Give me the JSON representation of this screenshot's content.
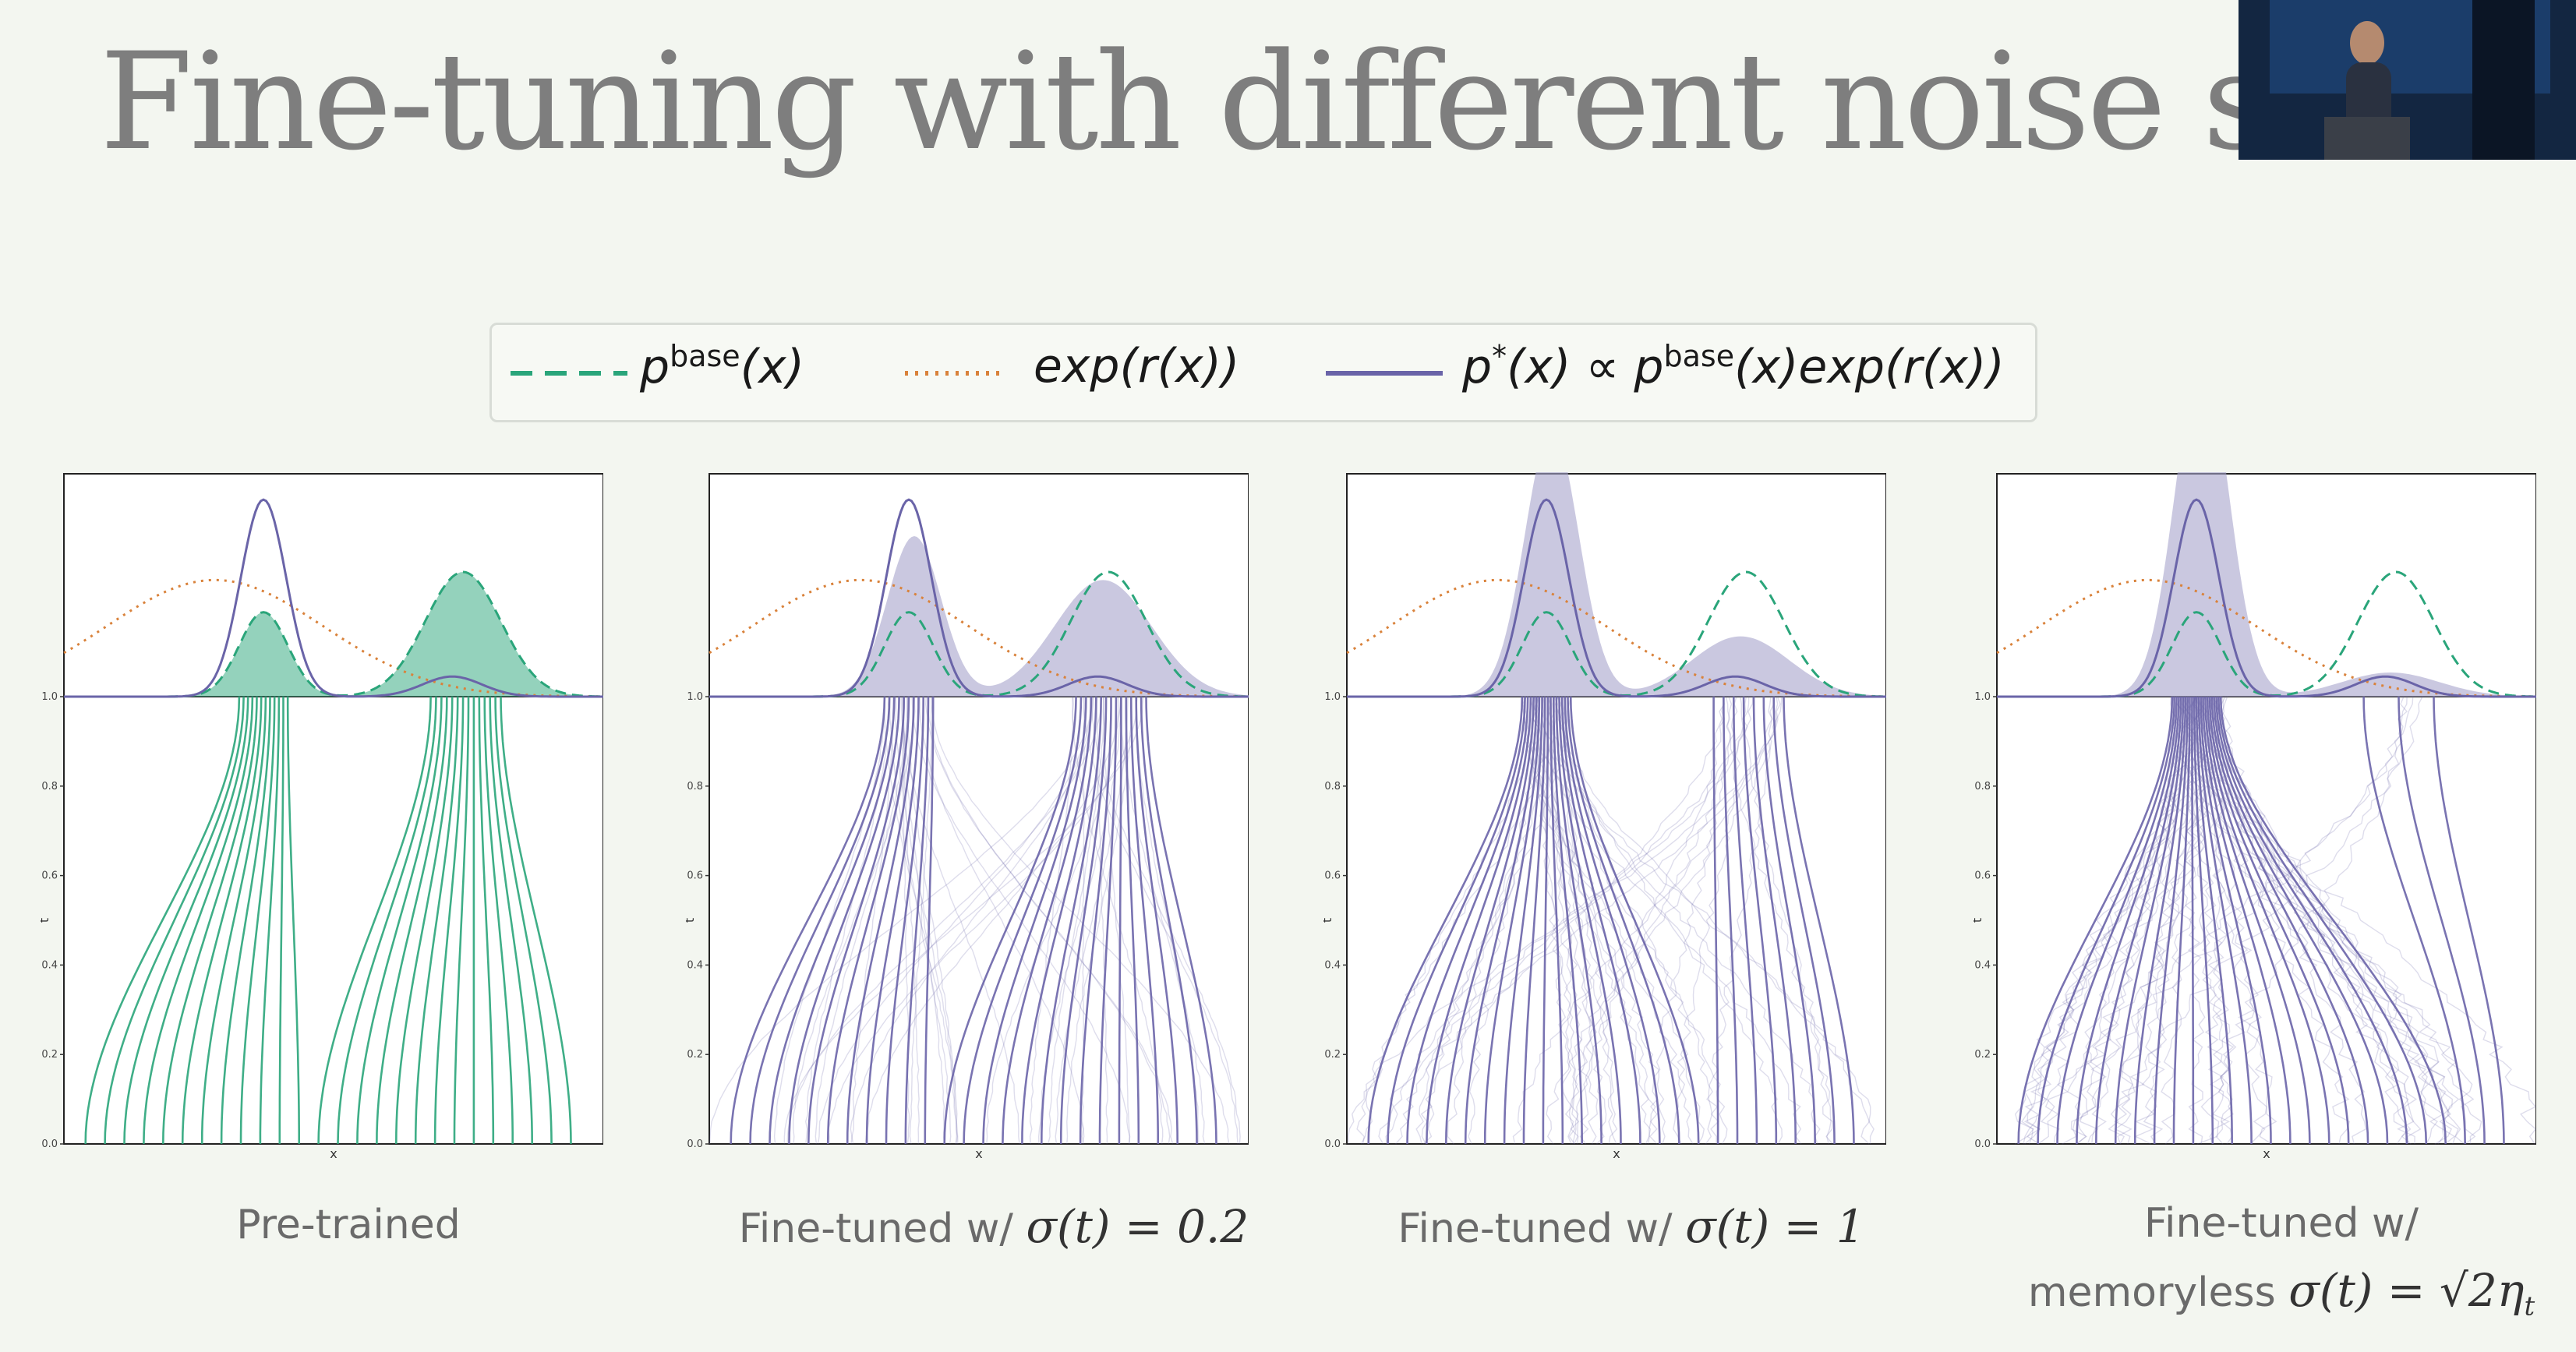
{
  "slide": {
    "title": "Fine-tuning with different noise sched"
  },
  "legend": {
    "items": [
      {
        "label_main": "p",
        "label_sup": "base",
        "label_rest": "(x)",
        "color": "#2aa57a",
        "style": "dashed"
      },
      {
        "label_main": "exp(r(x))",
        "label_sup": "",
        "label_rest": "",
        "color": "#d9823b",
        "style": "dotted"
      },
      {
        "label_main": "p",
        "label_sup": "*",
        "label_rest": "(x) ∝ p",
        "label_sup2": "base",
        "label_rest2": "(x)exp(r(x))",
        "color": "#6a64a8",
        "style": "solid"
      }
    ]
  },
  "chart_data": [
    {
      "type": "line",
      "caption": "Pre-trained",
      "xlabel": "x",
      "ylabel": "t",
      "ylim": [
        0,
        1.0
      ],
      "yticks": [
        "0.0",
        "0.2",
        "0.4",
        "0.6",
        "0.8",
        "1.0"
      ],
      "trajectory_color": "#2aa57a",
      "filled_density": "base",
      "fill_color": "#2aa57a",
      "noise": 0,
      "mode_weights": [
        0.45,
        0.55
      ]
    },
    {
      "type": "line",
      "caption": "Fine-tuned w/ ",
      "caption_math": "σ(t) = 0.2",
      "xlabel": "x",
      "ylabel": "t",
      "ylim": [
        0,
        1.0
      ],
      "yticks": [
        "0.0",
        "0.2",
        "0.4",
        "0.6",
        "0.8",
        "1.0"
      ],
      "trajectory_color": "#6a64a8",
      "filled_density": "histogram",
      "fill_color": "#a7a3cc",
      "noise": 0.2,
      "mode_weights": [
        0.42,
        0.58
      ]
    },
    {
      "type": "line",
      "caption": "Fine-tuned w/ ",
      "caption_math": "σ(t) = 1",
      "xlabel": "x",
      "ylabel": "t",
      "ylim": [
        0,
        1.0
      ],
      "yticks": [
        "0.0",
        "0.2",
        "0.4",
        "0.6",
        "0.8",
        "1.0"
      ],
      "trajectory_color": "#6a64a8",
      "filled_density": "histogram",
      "fill_color": "#a7a3cc",
      "noise": 1,
      "mode_weights": [
        0.7,
        0.3
      ]
    },
    {
      "type": "line",
      "caption": "Fine-tuned w/",
      "caption_line2": "memoryless ",
      "caption_math": "σ(t) = √2η",
      "caption_math_sub": "t",
      "xlabel": "x",
      "ylabel": "t",
      "ylim": [
        0,
        1.0
      ],
      "yticks": [
        "0.0",
        "0.2",
        "0.4",
        "0.6",
        "0.8",
        "1.0"
      ],
      "trajectory_color": "#6a64a8",
      "filled_density": "histogram",
      "fill_color": "#a7a3cc",
      "noise": 2,
      "mode_weights": [
        0.88,
        0.12
      ]
    }
  ]
}
